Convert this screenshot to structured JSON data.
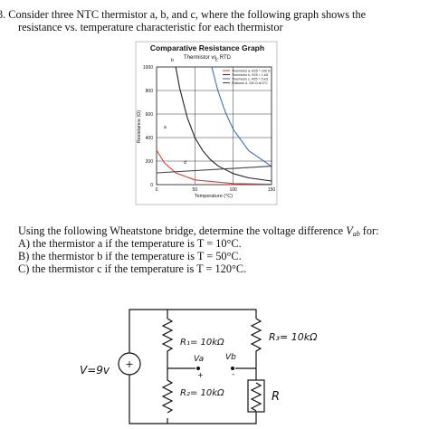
{
  "header": {
    "text_line1": "3. Consider three NTC thermistor a, b, and c, where the following graph shows the",
    "text_line2": "resistance vs. temperature characteristic for each thermistor"
  },
  "chart_data": {
    "type": "line",
    "title": "Comparative Resistance Graph",
    "subtitle": "Thermistor vs. RTD",
    "x_label": "Temperature (°C)",
    "y_label": "Resistance (Ω)",
    "xlim": [
      0,
      150
    ],
    "ylim": [
      0,
      1000
    ],
    "xticks": [
      0,
      50,
      100,
      150
    ],
    "yticks": [
      0,
      200,
      400,
      600,
      800,
      1000
    ],
    "grid": true,
    "legend": "top-right",
    "series": [
      {
        "name": "Thermistor a, R25 = 100 Ω",
        "label": "a",
        "color": "#d9403a",
        "x": [
          0,
          10,
          25,
          50,
          100,
          150
        ],
        "values": [
          293,
          186,
          100,
          40,
          9.4,
          3.1
        ]
      },
      {
        "name": "Thermistor b, R25 = 1 kΩ",
        "label": "b",
        "color": "#222222",
        "x": [
          25,
          30,
          40,
          50,
          60,
          70,
          80,
          100,
          120,
          150
        ],
        "values": [
          1000,
          824,
          570,
          400,
          291,
          214,
          160,
          94,
          58,
          31
        ]
      },
      {
        "name": "Thermistor c, R25 = 5 kΩ",
        "label": "c",
        "color": "#3b6fb3",
        "x": [
          72,
          80,
          90,
          100,
          120,
          150
        ],
        "values": [
          1000,
          800,
          612,
          470,
          290,
          155
        ]
      },
      {
        "name": "Platinum d, 100 Ω at 0°C",
        "label": "d",
        "color": "#444444",
        "x": [
          0,
          150
        ],
        "values": [
          100,
          157
        ]
      }
    ]
  },
  "question": {
    "intro_before": "Using the following Wheatstone bridge, determine the voltage difference ",
    "variable": "V",
    "variable_subscript": "ab",
    "intro_after": " for:",
    "items": [
      "A) the thermistor a if the temperature is T = 10°C.",
      "B) the thermistor b if the temperature is T = 50°C.",
      "C) the thermistor c if the temperature is T = 120°C."
    ]
  },
  "circuit": {
    "source": "V=9v",
    "plus": "+",
    "r1": "R₁= 10kΩ",
    "r2": "R₂= 10kΩ",
    "r3": "R₃= 10kΩ",
    "r": "R",
    "va": "Va",
    "vb": "Vb",
    "va_sign": "+",
    "vb_sign": "-"
  }
}
